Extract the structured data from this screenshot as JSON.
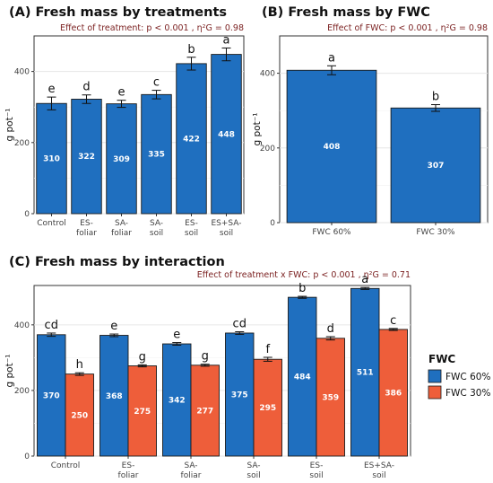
{
  "chart_data": [
    {
      "type": "bar",
      "title": "(A) Fresh mass by treatments",
      "annotation": "Effect of treatment: p < 0.001 , η²G = 0.98",
      "ylabel": "g pot⁻¹",
      "ylim": [
        0,
        500
      ],
      "yticks": [
        0,
        200,
        400
      ],
      "categories": [
        "Control",
        "ES-\nfoliar",
        "SA-\nfoliar",
        "SA-\nsoil",
        "ES-\nsoil",
        "ES+SA-\nsoil"
      ],
      "values": [
        310,
        322,
        309,
        335,
        422,
        448
      ],
      "errors": [
        18,
        12,
        10,
        12,
        18,
        18
      ],
      "letters": [
        "e",
        "d",
        "e",
        "c",
        "b",
        "a"
      ],
      "colors": [
        "#1f6fbf"
      ]
    },
    {
      "type": "bar",
      "title": "(B) Fresh mass by FWC",
      "annotation": "Effect of FWC: p < 0.001 , η²G = 0.98",
      "ylabel": "g pot⁻¹",
      "ylim": [
        0,
        500
      ],
      "yticks": [
        0,
        200,
        400
      ],
      "categories": [
        "FWC 60%",
        "FWC 30%"
      ],
      "values": [
        408,
        307
      ],
      "errors": [
        12,
        9
      ],
      "letters": [
        "a",
        "b"
      ],
      "colors": [
        "#1f6fbf"
      ]
    },
    {
      "type": "bar",
      "title": "(C) Fresh mass by interaction",
      "annotation": "Effect of treatment x FWC: p < 0.001 , η²G = 0.71",
      "ylabel": "g pot⁻¹",
      "ylim": [
        0,
        520
      ],
      "yticks": [
        0,
        200,
        400
      ],
      "categories": [
        "Control",
        "ES-\nfoliar",
        "SA-\nfoliar",
        "SA-\nsoil",
        "ES-\nsoil",
        "ES+SA-\nsoil"
      ],
      "legend_title": "FWC",
      "legend_position": "right",
      "series": [
        {
          "name": "FWC 60%",
          "color": "#1f6fbf",
          "values": [
            370,
            368,
            342,
            375,
            484,
            511
          ],
          "errors": [
            5,
            4,
            4,
            4,
            3,
            3
          ],
          "letters": [
            "cd",
            "e",
            "e",
            "cd",
            "b",
            "a"
          ]
        },
        {
          "name": "FWC 30%",
          "color": "#ee5e3a",
          "values": [
            250,
            275,
            277,
            295,
            359,
            386
          ],
          "errors": [
            4,
            3,
            3,
            6,
            5,
            3
          ],
          "letters": [
            "h",
            "g",
            "g",
            "f",
            "d",
            "c"
          ]
        }
      ]
    }
  ]
}
